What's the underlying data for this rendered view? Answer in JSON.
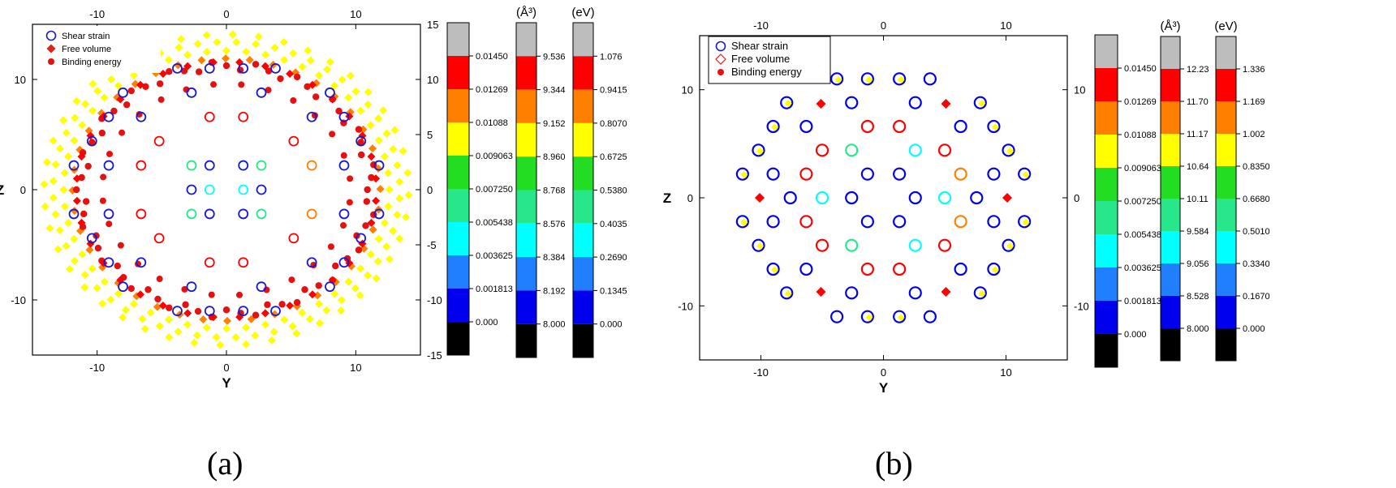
{
  "colors": {
    "shear": "#1a1acc",
    "free_volume": "#e0201c",
    "binding": "#e61010",
    "levels": [
      "#000000",
      "#0000ee",
      "#1f7fff",
      "#00ffff",
      "#28e68a",
      "#22dd22",
      "#ffff00",
      "#ff7f00",
      "#ff0000",
      "#bdbdbd"
    ]
  },
  "chart_data": [
    {
      "type": "scatter",
      "panel_label": "(a)",
      "xlabel": "Y",
      "ylabel": "Z",
      "xlim": [
        -15,
        15
      ],
      "ylim": [
        -15,
        15
      ],
      "x_ticks": [
        "-10",
        "0",
        "10"
      ],
      "y_ticks": [
        "-10",
        "0",
        "10"
      ],
      "top_ticks": [
        "-10",
        "0",
        "10"
      ],
      "right_ticks": [
        "-15",
        "-10",
        "-5",
        "0",
        "5",
        "10",
        "15"
      ],
      "grid": false,
      "legend": {
        "position": "top-left",
        "entries": [
          {
            "label": "Shear strain",
            "marker": "open-circle"
          },
          {
            "label": "Free volume",
            "marker": "filled-diamond"
          },
          {
            "label": "Binding energy",
            "marker": "filled-circle"
          }
        ]
      },
      "shear_strain_points": [
        {
          "y": -2.7,
          "z": 2.2,
          "level": "cyan-green"
        },
        {
          "y": 2.7,
          "z": 2.2,
          "level": "cyan-green"
        },
        {
          "y": -2.7,
          "z": -2.2,
          "level": "cyan-green"
        },
        {
          "y": 2.7,
          "z": -2.2,
          "level": "cyan-green"
        },
        {
          "y": -1.3,
          "z": 0,
          "level": "cyan"
        },
        {
          "y": 1.3,
          "z": 0,
          "level": "cyan"
        }
      ],
      "colorbars": [
        {
          "unit": "",
          "tick_labels": [
            "0.000",
            "0.001813",
            "0.003625",
            "0.005438",
            "0.007250",
            "0.009063",
            "0.01088",
            "0.01269",
            "0.01450"
          ]
        },
        {
          "unit": "(Å³)",
          "tick_labels": [
            "8.000",
            "8.192",
            "8.384",
            "8.576",
            "8.768",
            "8.960",
            "9.152",
            "9.344",
            "9.536"
          ]
        },
        {
          "unit": "(eV)",
          "tick_labels": [
            "0.000",
            "0.1345",
            "0.2690",
            "0.4035",
            "0.5380",
            "0.6725",
            "0.8070",
            "0.9415",
            "1.076"
          ]
        }
      ]
    },
    {
      "type": "scatter",
      "panel_label": "(b)",
      "xlabel": "Y",
      "ylabel": "Z",
      "xlim": [
        -15,
        15
      ],
      "ylim": [
        -15,
        15
      ],
      "x_ticks": [
        "-10",
        "0",
        "10"
      ],
      "y_ticks": [
        "-10",
        "0",
        "10"
      ],
      "top_ticks": [
        "-10",
        "0",
        "10"
      ],
      "right_ticks": [
        "-10",
        "0",
        "10"
      ],
      "grid": false,
      "legend": {
        "position": "top-left",
        "entries": [
          {
            "label": "Shear strain",
            "marker": "open-circle"
          },
          {
            "label": "Free volume",
            "marker": "open-diamond"
          },
          {
            "label": "Binding energy",
            "marker": "filled-circle"
          }
        ]
      },
      "colorbars": [
        {
          "unit": "",
          "tick_labels": [
            "0.000",
            "0.001813",
            "0.003625",
            "0.005438",
            "0.007250",
            "0.009063",
            "0.01088",
            "0.01269",
            "0.01450"
          ]
        },
        {
          "unit": "(Å³)",
          "tick_labels": [
            "8.000",
            "8.528",
            "9.056",
            "9.584",
            "10.11",
            "10.64",
            "11.17",
            "11.70",
            "12.23"
          ]
        },
        {
          "unit": "(eV)",
          "tick_labels": [
            "0.000",
            "0.1670",
            "0.3340",
            "0.5010",
            "0.6680",
            "0.8350",
            "1.002",
            "1.169",
            "1.336"
          ]
        }
      ]
    }
  ]
}
